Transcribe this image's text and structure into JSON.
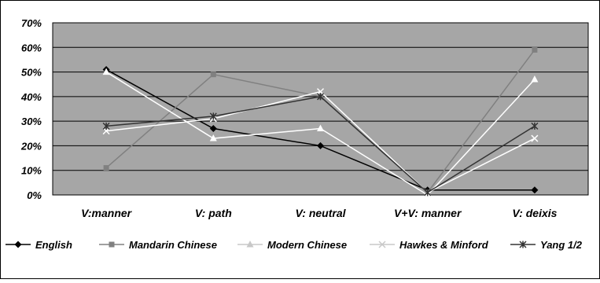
{
  "chart_data": {
    "type": "line",
    "title": "",
    "xlabel": "",
    "ylabel": "",
    "categories": [
      "V:manner",
      "V: path",
      "V: neutral",
      "V+V: manner",
      "V: deixis"
    ],
    "ylim": [
      0,
      70
    ],
    "yticks": [
      "0%",
      "10%",
      "20%",
      "30%",
      "40%",
      "50%",
      "60%",
      "70%"
    ],
    "grid": true,
    "legend_position": "bottom",
    "series": [
      {
        "name": "English",
        "values": [
          51,
          27,
          20,
          2,
          2
        ],
        "color": "#000000",
        "marker": "diamond"
      },
      {
        "name": "Mandarin Chinese",
        "values": [
          11,
          49,
          40,
          1,
          59
        ],
        "color": "#808080",
        "marker": "square"
      },
      {
        "name": "Modern Chinese",
        "values": [
          50,
          23,
          27,
          0,
          47
        ],
        "color": "#ffffff",
        "marker": "triangle"
      },
      {
        "name": "Hawkes & Minford",
        "values": [
          26,
          31,
          42,
          1,
          23
        ],
        "color": "#ffffff",
        "marker": "x"
      },
      {
        "name": "Yang 1/2",
        "values": [
          28,
          32,
          40,
          1,
          28
        ],
        "color": "#333333",
        "marker": "star"
      }
    ]
  }
}
